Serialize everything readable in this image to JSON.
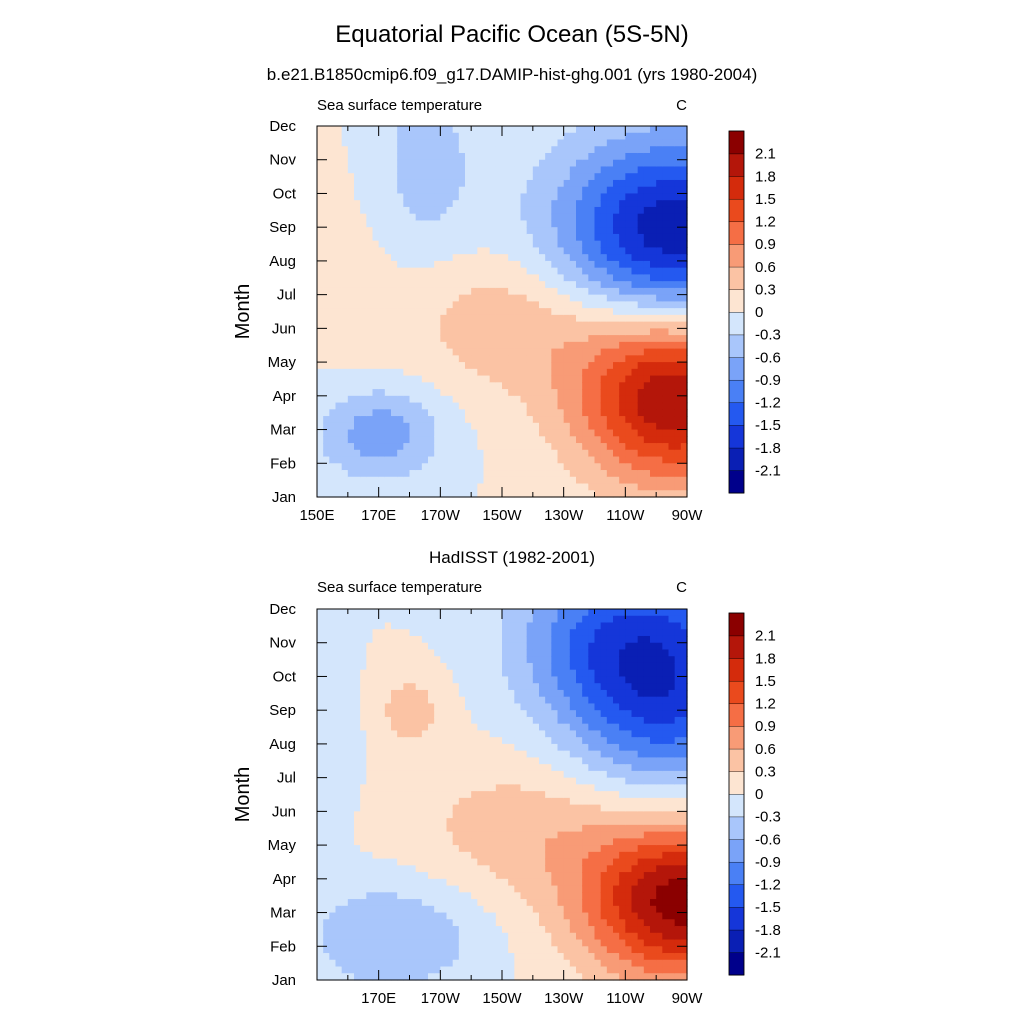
{
  "figure": {
    "title": "Equatorial Pacific Ocean (5S-5N)"
  },
  "chart_data": [
    {
      "type": "heatmap",
      "title": "b.e21.B1850cmip6.f09_g17.DAMIP-hist-ghg.001 (yrs 1980-2004)",
      "left_label": "Sea surface temperature",
      "right_label": "C",
      "ylabel": "Month",
      "xlabel": "",
      "x_ticks": [
        "150E",
        "170E",
        "170W",
        "150W",
        "130W",
        "110W",
        "90W"
      ],
      "x_tick_values": [
        150,
        170,
        190,
        210,
        230,
        250,
        270
      ],
      "xlim": [
        150,
        270
      ],
      "y_ticks": [
        "Jan",
        "Feb",
        "Mar",
        "Apr",
        "May",
        "Jun",
        "Jul",
        "Aug",
        "Sep",
        "Oct",
        "Nov",
        "Dec"
      ],
      "ylim": [
        1,
        12
      ],
      "colorbar": {
        "levels": [
          -2.1,
          -1.8,
          -1.5,
          -1.2,
          -0.9,
          -0.6,
          -0.3,
          0,
          0.3,
          0.6,
          0.9,
          1.2,
          1.5,
          1.8,
          2.1
        ],
        "labels": [
          "-2.1",
          "-1.8",
          "-1.5",
          "-1.2",
          "-0.9",
          "-0.6",
          "-0.3",
          "0",
          "0.3",
          "0.6",
          "0.9",
          "1.2",
          "1.5",
          "1.8",
          "2.1"
        ],
        "colors": [
          "#00008b",
          "#0a1fb4",
          "#1536d9",
          "#2459f0",
          "#4a80f5",
          "#7aa3f8",
          "#a9c6fb",
          "#d4e6fc",
          "#fde5d2",
          "#fbc3a4",
          "#f89b76",
          "#f56e45",
          "#ea4a1d",
          "#d42b0c",
          "#b4160a",
          "#8b0000"
        ]
      },
      "peaks": [
        {
          "x": 265,
          "y": 8.8,
          "a": -2.05,
          "sx": 26,
          "sy": 2.0
        },
        {
          "x": 185,
          "y": 10.8,
          "a": -0.45,
          "sx": 12,
          "sy": 2.0
        },
        {
          "x": 266,
          "y": 4.0,
          "a": 2.15,
          "sx": 22,
          "sy": 1.8
        },
        {
          "x": 215,
          "y": 6.2,
          "a": 0.55,
          "sx": 26,
          "sy": 1.5
        },
        {
          "x": 170,
          "y": 2.9,
          "a": -0.8,
          "sx": 14,
          "sy": 1.0
        },
        {
          "x": 162,
          "y": 7.5,
          "a": 0.1,
          "sx": 10,
          "sy": 3.0
        }
      ]
    },
    {
      "type": "heatmap",
      "title": "HadISST (1982-2001)",
      "left_label": "Sea surface temperature",
      "right_label": "C",
      "ylabel": "Month",
      "xlabel": "",
      "x_ticks": [
        "170E",
        "170W",
        "150W",
        "130W",
        "110W",
        "90W"
      ],
      "x_tick_values": [
        170,
        190,
        210,
        230,
        250,
        270
      ],
      "xlim": [
        150,
        270
      ],
      "y_ticks": [
        "Jan",
        "Feb",
        "Mar",
        "Apr",
        "May",
        "Jun",
        "Jul",
        "Aug",
        "Sep",
        "Oct",
        "Nov",
        "Dec"
      ],
      "ylim": [
        1,
        12
      ],
      "colorbar": {
        "levels": [
          -2.1,
          -1.8,
          -1.5,
          -1.2,
          -0.9,
          -0.6,
          -0.3,
          0,
          0.3,
          0.6,
          0.9,
          1.2,
          1.5,
          1.8,
          2.1
        ],
        "labels": [
          "-2.1",
          "-1.8",
          "-1.5",
          "-1.2",
          "-0.9",
          "-0.6",
          "-0.3",
          "0",
          "0.3",
          "0.6",
          "0.9",
          "1.2",
          "1.5",
          "1.8",
          "2.1"
        ],
        "colors": [
          "#00008b",
          "#0a1fb4",
          "#1536d9",
          "#2459f0",
          "#4a80f5",
          "#7aa3f8",
          "#a9c6fb",
          "#d4e6fc",
          "#fde5d2",
          "#fbc3a4",
          "#f89b76",
          "#f56e45",
          "#ea4a1d",
          "#d42b0c",
          "#b4160a",
          "#8b0000"
        ]
      },
      "peaks": [
        {
          "x": 262,
          "y": 10.0,
          "a": -1.75,
          "sx": 22,
          "sy": 2.3
        },
        {
          "x": 235,
          "y": 11.2,
          "a": -0.6,
          "sx": 18,
          "sy": 1.6
        },
        {
          "x": 268,
          "y": 3.3,
          "a": 2.25,
          "sx": 22,
          "sy": 1.6
        },
        {
          "x": 220,
          "y": 5.5,
          "a": 0.5,
          "sx": 28,
          "sy": 1.5
        },
        {
          "x": 175,
          "y": 2.3,
          "a": -0.6,
          "sx": 20,
          "sy": 1.2
        },
        {
          "x": 180,
          "y": 9.0,
          "a": 0.45,
          "sx": 8,
          "sy": 0.8
        },
        {
          "x": 155,
          "y": 8.0,
          "a": -0.3,
          "sx": 6,
          "sy": 1.5
        }
      ]
    }
  ]
}
